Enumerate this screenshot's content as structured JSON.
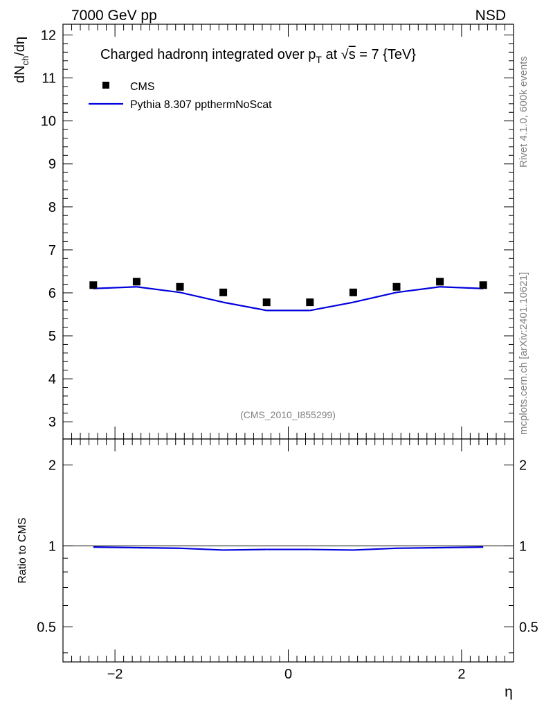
{
  "header": {
    "left": "7000 GeV pp",
    "right": "NSD"
  },
  "side_labels": {
    "rivet": "Rivet 4.1.0,  600k events",
    "mcplots": "mcplots.cern.ch [arXiv:2401.10621]"
  },
  "analysis_id": "(CMS_2010_I855299)",
  "chart_data": [
    {
      "type": "scatter",
      "panel": "main",
      "title_parts": {
        "prefix": "Charged hadron",
        "eta": "η",
        "middle": " integrated over p",
        "sub": "T",
        "at": " at ",
        "sqrt": "√",
        "s": "s",
        "suffix": " = 7 {TeV}"
      },
      "ylabel": {
        "d": "dN",
        "sub": "ch",
        "rest": "/dη"
      },
      "xlabel": "η",
      "xlim": [
        -2.6,
        2.6
      ],
      "ylim": [
        2.6,
        12.25
      ],
      "yticks": [
        3,
        4,
        5,
        6,
        7,
        8,
        9,
        10,
        11,
        12
      ],
      "ytick_labels": [
        "3",
        "4",
        "5",
        "6",
        "7",
        "8",
        "9",
        "10",
        "11",
        "12"
      ],
      "x": [
        -2.25,
        -1.75,
        -1.25,
        -0.75,
        -0.25,
        0.25,
        0.75,
        1.25,
        1.75,
        2.25
      ],
      "series": [
        {
          "name": "CMS",
          "kind": "markers",
          "color": "#000000",
          "values": [
            6.18,
            6.26,
            6.14,
            6.01,
            5.78,
            5.78,
            6.01,
            6.14,
            6.26,
            6.18
          ]
        },
        {
          "name": "Pythia 8.307 ppthermNoScat",
          "kind": "line",
          "color": "#0000dd",
          "values": [
            6.1,
            6.14,
            6.01,
            5.78,
            5.59,
            5.59,
            5.78,
            6.01,
            6.14,
            6.1
          ]
        }
      ],
      "legend": {
        "placement": "top-left"
      }
    },
    {
      "type": "line",
      "panel": "ratio",
      "ylabel": "Ratio to CMS",
      "ylim": [
        0.37,
        2.5
      ],
      "yticks": [
        0.5,
        1,
        2
      ],
      "ytick_labels": [
        "0.5",
        "1",
        "2"
      ],
      "xticks": [
        -2,
        0,
        2
      ],
      "xtick_labels": [
        "−2",
        "0",
        "2"
      ],
      "x": [
        -2.25,
        -1.75,
        -1.25,
        -0.75,
        -0.25,
        0.25,
        0.75,
        1.25,
        1.75,
        2.25
      ],
      "reference": 1,
      "series": [
        {
          "name": "Pythia 8.307 ppthermNoScat / CMS",
          "color": "#0000dd",
          "values": [
            0.99,
            0.985,
            0.98,
            0.965,
            0.97,
            0.97,
            0.965,
            0.98,
            0.985,
            0.99
          ]
        }
      ]
    }
  ]
}
